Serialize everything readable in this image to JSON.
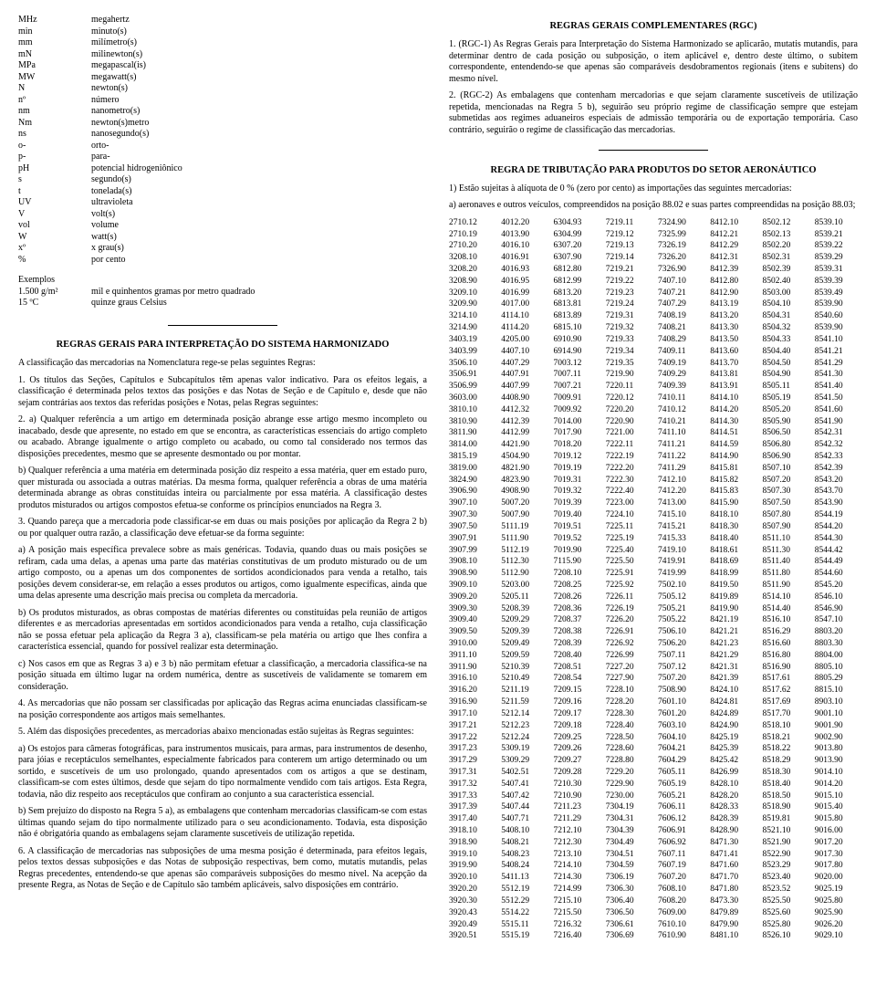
{
  "leftCol": {
    "abbrev": [
      {
        "k": "MHz",
        "v": "megahertz"
      },
      {
        "k": "min",
        "v": "minuto(s)"
      },
      {
        "k": "mm",
        "v": "milímetro(s)"
      },
      {
        "k": "mN",
        "v": "milinewton(s)"
      },
      {
        "k": "MPa",
        "v": "megapascal(is)"
      },
      {
        "k": "MW",
        "v": "megawatt(s)"
      },
      {
        "k": "N",
        "v": "newton(s)"
      },
      {
        "k": "nº",
        "v": "número"
      },
      {
        "k": "nm",
        "v": "nanometro(s)"
      },
      {
        "k": "Nm",
        "v": "newton(s)metro"
      },
      {
        "k": "ns",
        "v": "nanosegundo(s)"
      },
      {
        "k": "o-",
        "v": "orto-"
      },
      {
        "k": "p-",
        "v": "para-"
      },
      {
        "k": "pH",
        "v": "potencial hidrogeniônico"
      },
      {
        "k": "s",
        "v": "segundo(s)"
      },
      {
        "k": "t",
        "v": "tonelada(s)"
      },
      {
        "k": "UV",
        "v": "ultravioleta"
      },
      {
        "k": "V",
        "v": "volt(s)"
      },
      {
        "k": "vol",
        "v": "volume"
      },
      {
        "k": "W",
        "v": "watt(s)"
      },
      {
        "k": "xº",
        "v": "x grau(s)"
      },
      {
        "k": "%",
        "v": "por cento"
      }
    ],
    "examplesHdr": "Exemplos",
    "examples": [
      {
        "k": "1.500 g/m²",
        "v": "mil e quinhentos gramas por metro quadrado"
      },
      {
        "k": "15 ºC",
        "v": "quinze graus Celsius"
      }
    ],
    "h1": "REGRAS GERAIS PARA INTERPRETAÇÃO DO SISTEMA HARMONIZADO",
    "intro": "A classificação das mercadorias na Nomenclatura rege-se pelas seguintes Regras:",
    "p1": "1. Os títulos das Seções, Capítulos e Subcapítulos têm apenas valor indicativo. Para os efeitos legais, a classificação é determinada pelos textos das posições e das Notas de Seção e de Capítulo e, desde que não sejam contrárias aos textos das referidas posições e Notas, pelas Regras seguintes:",
    "p2": "2. a) Qualquer referência a um artigo em determinada posição abrange esse artigo mesmo incompleto ou inacabado, desde que apresente, no estado em que se encontra, as características essenciais do artigo completo ou acabado. Abrange igualmente o artigo completo ou acabado, ou como tal considerado nos termos das disposições precedentes, mesmo que se apresente desmontado ou por montar.",
    "p3": "b) Qualquer referência a uma matéria em determinada posição diz respeito a essa matéria, quer em estado puro, quer misturada ou associada a outras matérias. Da mesma forma, qualquer referência a obras de uma matéria determinada abrange as obras constituídas inteira ou parcialmente por essa matéria. A classificação destes produtos misturados ou artigos compostos efetua-se conforme os princípios enunciados na Regra 3.",
    "p4": "3. Quando pareça que a mercadoria pode classificar-se em duas ou mais posições por aplicação da Regra 2 b) ou por qualquer outra razão, a classificação deve efetuar-se da forma seguinte:",
    "p5": "a) A posição mais específica prevalece sobre as mais genéricas. Todavia, quando duas ou mais posições se refiram, cada uma delas, a apenas uma parte das matérias constitutivas de um produto misturado ou de um artigo composto, ou a apenas um dos componentes de sortidos acondicionados para venda a retalho, tais posições devem considerar-se, em relação a esses produtos ou artigos, como igualmente específicas, ainda que uma delas apresente uma descrição mais precisa ou completa da mercadoria.",
    "p6": "b) Os produtos misturados, as obras compostas de matérias diferentes ou constituídas pela reunião de artigos diferentes e as mercadorias apresentadas em sortidos acondicionados para venda a retalho, cuja classificação não se possa efetuar pela aplicação da Regra 3 a), classificam-se pela matéria ou artigo que lhes confira a característica essencial, quando for possível realizar esta determinação.",
    "p7": "c) Nos casos em que as Regras 3 a) e 3 b) não permitam efetuar a classificação, a mercadoria classifica-se na posição situada em último lugar na ordem numérica, dentre as suscetíveis de validamente se tomarem em consideração.",
    "p8": "4. As mercadorias que não possam ser classificadas por aplicação das Regras acima enunciadas classificam-se na posição correspondente aos artigos mais semelhantes.",
    "p9": "5. Além das disposições precedentes, as mercadorias abaixo mencionadas estão sujeitas às Regras seguintes:",
    "p10": "a) Os estojos para câmeras fotográficas, para instrumentos musicais, para armas, para instrumentos de desenho, para jóias e receptáculos semelhantes, especialmente fabricados para conterem um artigo determinado ou um sortido, e suscetíveis de um uso prolongado, quando apresentados com os artigos a que se destinam, classificam-se com estes últimos, desde que sejam do tipo normalmente vendido com tais artigos. Esta Regra, todavia, não diz respeito aos receptáculos que confiram ao conjunto a sua característica essencial.",
    "p11": "b) Sem prejuízo do disposto na Regra 5 a), as embalagens que contenham mercadorias classificam-se com estas últimas quando sejam do tipo normalmente utilizado para o seu acondicionamento. Todavia, esta disposição não é obrigatória quando as embalagens sejam claramente suscetíveis de utilização repetida.",
    "p12": "6. A classificação de mercadorias nas subposições de uma mesma posição é determinada, para efeitos legais, pelos textos dessas subposições e das Notas de subposição respectivas, bem como, mutatis mutandis, pelas Regras precedentes, entendendo-se que apenas são comparáveis subposições do mesmo nível. Na acepção da presente Regra, as Notas de Seção e de Capítulo são também aplicáveis, salvo disposições em contrário."
  },
  "rightCol": {
    "h1": "REGRAS GERAIS COMPLEMENTARES (RGC)",
    "rgc1": "1. (RGC-1) As Regras Gerais para Interpretação do Sistema Harmonizado se aplicarão, mutatis mutandis, para determinar dentro de cada posição ou subposição, o item aplicável e, dentro deste último, o subitem correspondente, entendendo-se que apenas são comparáveis desdobramentos regionais (itens e subitens) do mesmo nível.",
    "rgc2": "2. (RGC-2) As embalagens que contenham mercadorias e que sejam claramente suscetíveis de utilização repetida, mencionadas na Regra 5 b), seguirão seu próprio regime de classificação sempre que estejam submetidas aos regimes aduaneiros especiais de admissão temporária ou de exportação temporária. Caso contrário, seguirão o regime de classificação das mercadorias.",
    "h2": "REGRA DE TRIBUTAÇÃO PARA PRODUTOS DO SETOR AERONÁUTICO",
    "aero1": "1) Estão sujeitas à alíquota de 0 % (zero por cento) as importações das seguintes mercadorias:",
    "aero2": "a) aeronaves e outros veículos, compreendidos na posição 88.02 e suas partes compreendidas na posição 88.03;",
    "codes": [
      "2710.12",
      "2710.19",
      "2710.20",
      "3208.10",
      "3208.20",
      "3208.90",
      "3209.10",
      "3209.90",
      "3214.10",
      "3214.90",
      "3403.19",
      "3403.99",
      "3506.10",
      "3506.91",
      "3506.99",
      "3603.00",
      "3810.10",
      "3810.90",
      "3811.90",
      "3814.00",
      "3815.19",
      "3819.00",
      "3824.90",
      "3906.90",
      "3907.10",
      "3907.30",
      "3907.50",
      "3907.91",
      "3907.99",
      "3908.10",
      "3908.90",
      "3909.10",
      "3909.20",
      "3909.30",
      "3909.40",
      "3909.50",
      "3910.00",
      "3911.10",
      "3911.90",
      "3916.10",
      "3916.20",
      "3916.90",
      "3917.10",
      "3917.21",
      "3917.22",
      "3917.23",
      "3917.29",
      "3917.31",
      "3917.32",
      "3917.33",
      "3917.39",
      "3917.40",
      "3918.10",
      "3918.90",
      "3919.10",
      "3919.90",
      "3920.10",
      "3920.20",
      "3920.30",
      "3920.43",
      "3920.49",
      "3920.51",
      "4012.20",
      "4013.90",
      "4016.10",
      "4016.91",
      "4016.93",
      "4016.95",
      "4016.99",
      "4017.00",
      "4114.10",
      "4114.20",
      "4205.00",
      "4407.10",
      "4407.29",
      "4407.91",
      "4407.99",
      "4408.90",
      "4412.32",
      "4412.39",
      "4412.99",
      "4421.90",
      "4504.90",
      "4821.90",
      "4823.90",
      "4908.90",
      "5007.20",
      "5007.90",
      "5111.19",
      "5111.90",
      "5112.19",
      "5112.30",
      "5112.90",
      "5203.00",
      "5205.11",
      "5208.39",
      "5209.29",
      "5209.39",
      "5209.49",
      "5209.59",
      "5210.39",
      "5210.49",
      "5211.19",
      "5211.59",
      "5212.14",
      "5212.23",
      "5212.24",
      "5309.19",
      "5309.29",
      "5402.51",
      "5407.41",
      "5407.42",
      "5407.44",
      "5407.71",
      "5408.10",
      "5408.21",
      "5408.23",
      "5408.24",
      "5411.13",
      "5512.19",
      "5512.29",
      "5514.22",
      "5515.11",
      "5515.19",
      "6304.93",
      "6304.99",
      "6307.20",
      "6307.90",
      "6812.80",
      "6812.99",
      "6813.20",
      "6813.81",
      "6813.89",
      "6815.10",
      "6910.90",
      "6914.90",
      "7003.12",
      "7007.11",
      "7007.21",
      "7009.91",
      "7009.92",
      "7014.00",
      "7017.90",
      "7018.20",
      "7019.12",
      "7019.19",
      "7019.31",
      "7019.32",
      "7019.39",
      "7019.40",
      "7019.51",
      "7019.52",
      "7019.90",
      "7115.90",
      "7208.10",
      "7208.25",
      "7208.26",
      "7208.36",
      "7208.37",
      "7208.38",
      "7208.39",
      "7208.40",
      "7208.51",
      "7208.54",
      "7209.15",
      "7209.16",
      "7209.17",
      "7209.18",
      "7209.25",
      "7209.26",
      "7209.27",
      "7209.28",
      "7210.30",
      "7210.90",
      "7211.23",
      "7211.29",
      "7212.10",
      "7212.30",
      "7213.10",
      "7214.10",
      "7214.30",
      "7214.99",
      "7215.10",
      "7215.50",
      "7216.32",
      "7216.40",
      "7219.11",
      "7219.12",
      "7219.13",
      "7219.14",
      "7219.21",
      "7219.22",
      "7219.23",
      "7219.24",
      "7219.31",
      "7219.32",
      "7219.33",
      "7219.34",
      "7219.35",
      "7219.90",
      "7220.11",
      "7220.12",
      "7220.20",
      "7220.90",
      "7221.00",
      "7222.11",
      "7222.19",
      "7222.20",
      "7222.30",
      "7222.40",
      "7223.00",
      "7224.10",
      "7225.11",
      "7225.19",
      "7225.40",
      "7225.50",
      "7225.91",
      "7225.92",
      "7226.11",
      "7226.19",
      "7226.20",
      "7226.91",
      "7226.92",
      "7226.99",
      "7227.20",
      "7227.90",
      "7228.10",
      "7228.20",
      "7228.30",
      "7228.40",
      "7228.50",
      "7228.60",
      "7228.80",
      "7229.20",
      "7229.90",
      "7230.00",
      "7304.19",
      "7304.31",
      "7304.39",
      "7304.49",
      "7304.51",
      "7304.59",
      "7306.19",
      "7306.30",
      "7306.40",
      "7306.50",
      "7306.61",
      "7306.69",
      "7324.90",
      "7325.99",
      "7326.19",
      "7326.20",
      "7326.90",
      "7407.10",
      "7407.21",
      "7407.29",
      "7408.19",
      "7408.21",
      "7408.29",
      "7409.11",
      "7409.19",
      "7409.29",
      "7409.39",
      "7410.11",
      "7410.12",
      "7410.21",
      "7411.10",
      "7411.21",
      "7411.22",
      "7411.29",
      "7412.10",
      "7412.20",
      "7413.00",
      "7415.10",
      "7415.21",
      "7415.33",
      "7419.10",
      "7419.91",
      "7419.99",
      "7502.10",
      "7505.12",
      "7505.21",
      "7505.22",
      "7506.10",
      "7506.20",
      "7507.11",
      "7507.12",
      "7507.20",
      "7508.90",
      "7601.10",
      "7601.20",
      "7603.10",
      "7604.10",
      "7604.21",
      "7604.29",
      "7605.11",
      "7605.19",
      "7605.21",
      "7606.11",
      "7606.12",
      "7606.91",
      "7606.92",
      "7607.11",
      "7607.19",
      "7607.20",
      "7608.10",
      "7608.20",
      "7609.00",
      "7610.10",
      "7610.90",
      "8412.10",
      "8412.21",
      "8412.29",
      "8412.31",
      "8412.39",
      "8412.80",
      "8412.90",
      "8413.19",
      "8413.20",
      "8413.30",
      "8413.50",
      "8413.60",
      "8413.70",
      "8413.81",
      "8413.91",
      "8414.10",
      "8414.20",
      "8414.30",
      "8414.51",
      "8414.59",
      "8414.90",
      "8415.81",
      "8415.82",
      "8415.83",
      "8415.90",
      "8418.10",
      "8418.30",
      "8418.40",
      "8418.61",
      "8418.69",
      "8418.99",
      "8419.50",
      "8419.89",
      "8419.90",
      "8421.19",
      "8421.21",
      "8421.23",
      "8421.29",
      "8421.31",
      "8421.39",
      "8424.10",
      "8424.81",
      "8424.89",
      "8424.90",
      "8425.19",
      "8425.39",
      "8425.42",
      "8426.99",
      "8428.10",
      "8428.20",
      "8428.33",
      "8428.39",
      "8428.90",
      "8471.30",
      "8471.41",
      "8471.60",
      "8471.70",
      "8471.80",
      "8473.30",
      "8479.89",
      "8479.90",
      "8481.10",
      "8502.12",
      "8502.13",
      "8502.20",
      "8502.31",
      "8502.39",
      "8502.40",
      "8503.00",
      "8504.10",
      "8504.31",
      "8504.32",
      "8504.33",
      "8504.40",
      "8504.50",
      "8504.90",
      "8505.11",
      "8505.19",
      "8505.20",
      "8505.90",
      "8506.50",
      "8506.80",
      "8506.90",
      "8507.10",
      "8507.20",
      "8507.30",
      "8507.50",
      "8507.80",
      "8507.90",
      "8511.10",
      "8511.30",
      "8511.40",
      "8511.80",
      "8511.90",
      "8514.10",
      "8514.40",
      "8516.10",
      "8516.29",
      "8516.60",
      "8516.80",
      "8516.90",
      "8517.61",
      "8517.62",
      "8517.69",
      "8517.70",
      "8518.10",
      "8518.21",
      "8518.22",
      "8518.29",
      "8518.30",
      "8518.40",
      "8518.50",
      "8518.90",
      "8519.81",
      "8521.10",
      "8521.90",
      "8522.90",
      "8523.29",
      "8523.40",
      "8523.52",
      "8525.50",
      "8525.60",
      "8525.80",
      "8526.10",
      "8539.10",
      "8539.21",
      "8539.22",
      "8539.29",
      "8539.31",
      "8539.39",
      "8539.49",
      "8539.90",
      "8540.60",
      "8539.90",
      "8541.10",
      "8541.21",
      "8541.29",
      "8541.30",
      "8541.40",
      "8541.50",
      "8541.60",
      "8541.90",
      "8542.31",
      "8542.32",
      "8542.33",
      "8542.39",
      "8543.20",
      "8543.70",
      "8543.90",
      "8544.19",
      "8544.20",
      "8544.30",
      "8544.42",
      "8544.49",
      "8544.60",
      "8545.20",
      "8546.10",
      "8546.90",
      "8547.10",
      "8803.20",
      "8803.30",
      "8804.00",
      "8805.10",
      "8805.29",
      "8815.10",
      "8903.10",
      "9001.10",
      "9001.90",
      "9002.90",
      "9013.80",
      "9013.90",
      "9014.10",
      "9014.20",
      "9015.10",
      "9015.40",
      "9015.80",
      "9016.00",
      "9017.20",
      "9017.30",
      "9017.80",
      "9020.00",
      "9025.19",
      "9025.80",
      "9025.90",
      "9026.20",
      "9029.10"
    ]
  }
}
